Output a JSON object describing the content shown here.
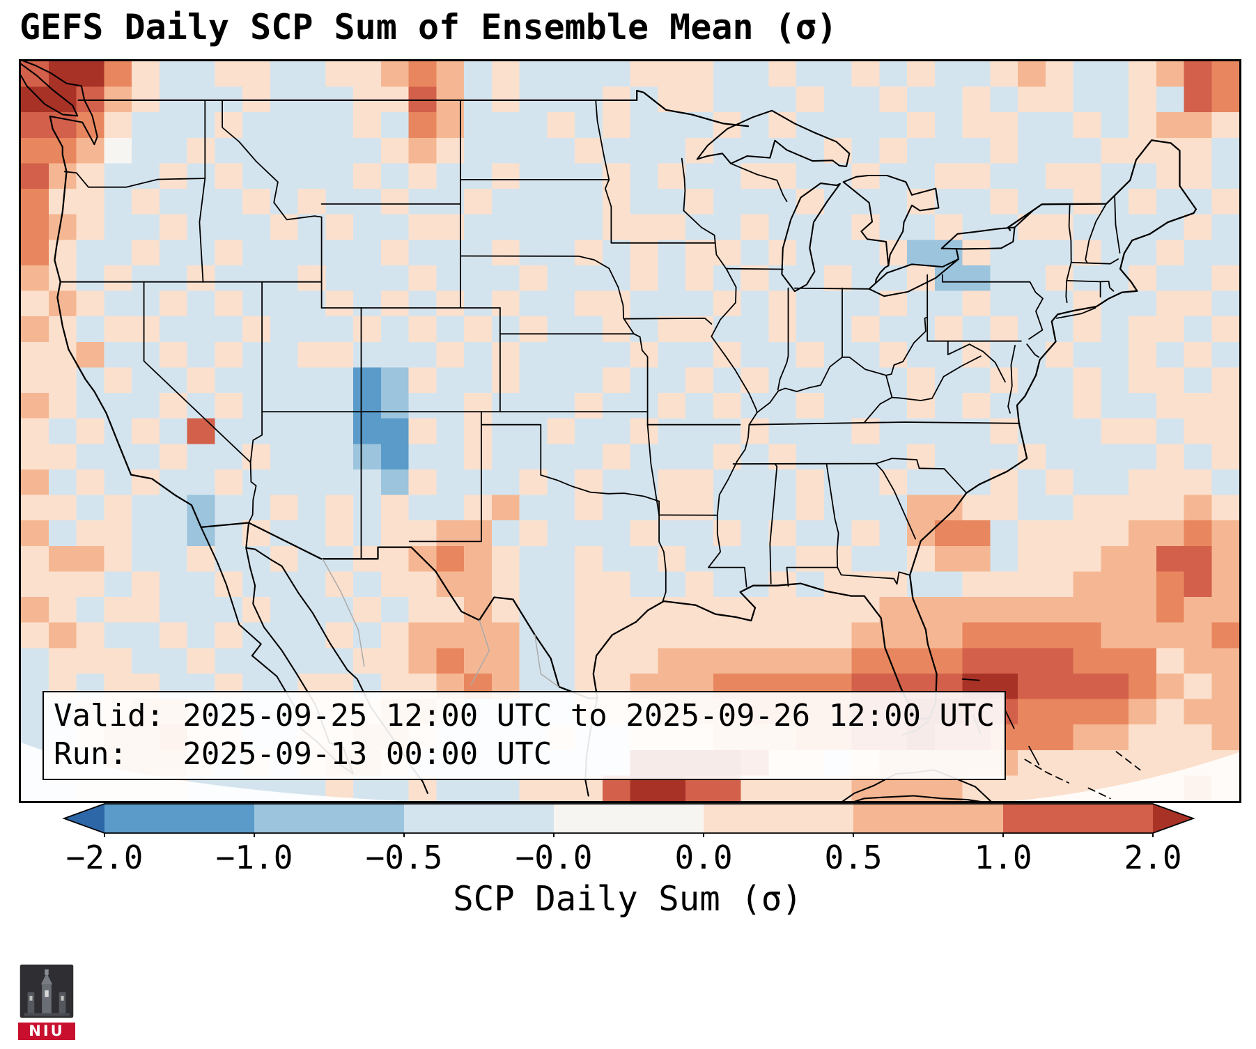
{
  "title": "GEFS Daily SCP Sum of Ensemble Mean (σ)",
  "info_box": {
    "valid_line": "Valid: 2025-09-25 12:00 UTC to 2025-09-26 12:00 UTC",
    "run_line": "Run:   2025-09-13 00:00 UTC"
  },
  "colorbar": {
    "label": "SCP Daily Sum (σ)",
    "ticks": [
      "−2.0",
      "−1.0",
      "−0.5",
      "−0.0",
      "0.0",
      "0.5",
      "1.0",
      "2.0"
    ],
    "segment_colors": [
      "#5b9bc9",
      "#9cc4dd",
      "#d4e4ee",
      "#f7f5f2",
      "#fbe0cd",
      "#f5b793",
      "#d2604a"
    ],
    "under_arrow_color": "#2e67a8",
    "over_arrow_color": "#a93226"
  },
  "logo": {
    "text": "NIU",
    "banner_color": "#c8102e",
    "emblem_color": "#2f2f33"
  },
  "chart_data": {
    "type": "heatmap",
    "title": "GEFS Daily SCP Sum of Ensemble Mean (σ)",
    "colorbar_label": "SCP Daily Sum (σ)",
    "colorbar_ticks": [
      "-2.0",
      "-1.0",
      "-0.5",
      "-0.0",
      "0.0",
      "0.5",
      "1.0",
      "2.0"
    ],
    "valid": "2025-09-25 12:00 UTC to 2025-09-26 12:00 UTC",
    "run": "2025-09-13 00:00 UTC",
    "region": "Continental United States and surrounding waters",
    "legend_position": "bottom",
    "palette": [
      "#2e67a8",
      "#5b9bc9",
      "#9cc4dd",
      "#d4e4ee",
      "#f7f5f2",
      "#fbe0cd",
      "#f5b793",
      "#e8875f",
      "#d2604a",
      "#a93226"
    ],
    "palette_bins_sigma": [
      "< -2.0",
      "-2.0 to -1.0",
      "-1.0 to -0.5",
      "-0.5 to -0.0",
      "-0.0 to 0.0",
      "0.0 to 0.5",
      "0.5 to 1.0",
      "intermediate ~1.0",
      "1.0 to 2.0",
      "> 2.0"
    ],
    "grid_cols": 44,
    "grid_rows": 29,
    "grid": [
      "89975335533556763533335553353353533565335687",
      "99865333533355863533353553335335335355335387",
      "88753335333353763335353335353333535533535665",
      "77643353333335653333533353333535333533355553",
      "86533535333353533533353533553353355335533553",
      "75535333535335335333353353335333533533535335",
      "76533533353533553333355533533353353355333353",
      "75335335333335333533535355353335225333533533",
      "65353353335333533353335353533533522335335335",
      "56533535333535353533553335353335335333533553",
      "65355333533353535353353553353353353533535535",
      "55633535335533353533335335335335335335335353",
      "55353353333312533533353353533333533533535535",
      "65333535333312335333533535335333535333533555",
      "53535383333311535335335333533353333533355355",
      "55333533533321335333353335353333533353333535",
      "63535335333332533353533553335335333535335553",
      "55353323353535335633533553335333665533555565",
      "63553323533535566353335335353353677355556676",
      "56653353353355676533533533335533566355566886",
      "55535335333535566533553353353555335555666786",
      "65355333533353556533555555555556666666666766",
      "56533535333535666633555555555566667777766667",
      "35553353333355676633555666666677778888777566",
      "35355335335535567633556667777788889988887656",
      "33556653335556653333555666777788998877776566",
      "33566755335566533335335556667788988777665556",
      "33366653535665333333339999855356666655555555",
      "33555533333533533355589988555566665555555565"
    ]
  }
}
